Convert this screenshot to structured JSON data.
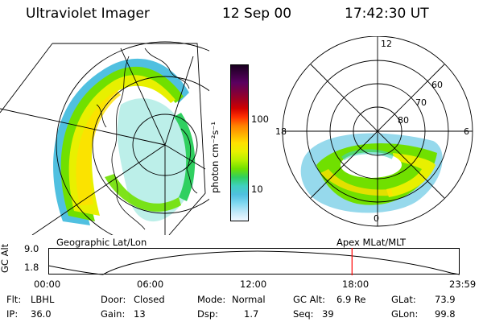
{
  "header": {
    "instrument": "Ultraviolet Imager",
    "date": "12 Sep 00",
    "time": "17:42:30 UT"
  },
  "colorbar": {
    "unit_label": "photon cm⁻²s⁻¹",
    "ticks": [
      "100",
      "10"
    ],
    "colors": [
      "#1a0020",
      "#3a0040",
      "#5a0060",
      "#7a0040",
      "#a00020",
      "#d00000",
      "#ff3000",
      "#ff8000",
      "#ffb000",
      "#ffe000",
      "#e8f000",
      "#b8f000",
      "#70e000",
      "#30d060",
      "#40d0c0",
      "#50c0e0",
      "#80d8f0",
      "#c0e8f8",
      "#f0f8ff"
    ]
  },
  "polar_plot": {
    "lat_labels": [
      "60",
      "70",
      "80"
    ],
    "mlt_labels": [
      "12",
      "18",
      "6",
      "0"
    ]
  },
  "map_labels": {
    "left": "Geographic Lat/Lon",
    "right": "Apex MLat/MLT"
  },
  "altitude_plot": {
    "ylabel": "GC Alt",
    "yticks": [
      "9.0",
      "1.8"
    ],
    "xticks": [
      "00:00",
      "06:00",
      "12:00",
      "18:00",
      "23:59"
    ],
    "marker_time": "17:42:30",
    "marker_color": "#ff0000"
  },
  "info": {
    "flt_label": "Flt:",
    "flt_value": "LBHL",
    "door_label": "Door:",
    "door_value": "Closed",
    "mode_label": "Mode:",
    "mode_value": "Normal",
    "gcalt_label": "GC Alt:",
    "gcalt_value": "6.9 Re",
    "glat_label": "GLat:",
    "glat_value": "73.9",
    "ip_label": "IP:",
    "ip_value": "36.0",
    "gain_label": "Gain:",
    "gain_value": "13",
    "dsp_label": "Dsp:",
    "dsp_value": "1.7",
    "seq_label": "Seq:",
    "seq_value": "39",
    "glon_label": "GLon:",
    "glon_value": "99.8"
  }
}
